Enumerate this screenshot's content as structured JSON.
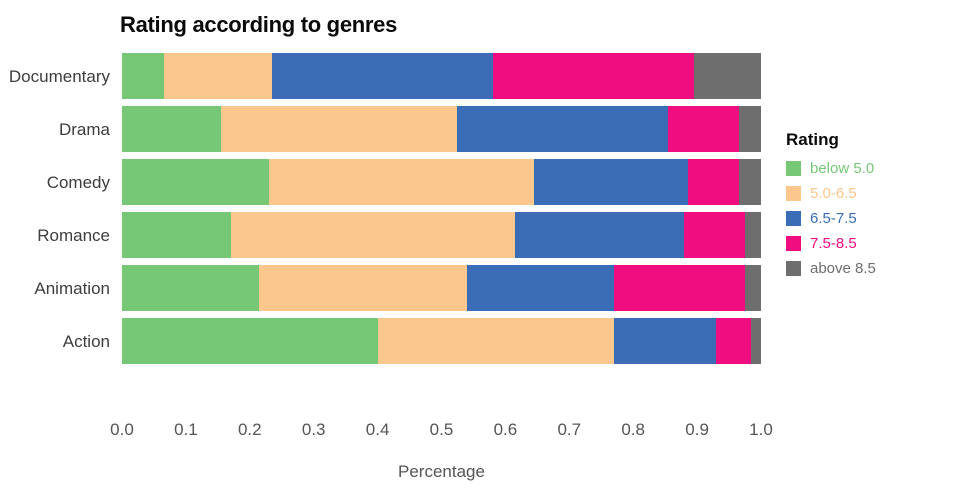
{
  "title": "Rating according to genres",
  "xlabel": "Percentage",
  "legend": {
    "title": "Rating",
    "items": [
      {
        "label": "below 5.0",
        "color": "#76C876"
      },
      {
        "label": "5.0-6.5",
        "color": "#FBC78C"
      },
      {
        "label": "6.5-7.5",
        "color": "#3A6DB5"
      },
      {
        "label": "7.5-8.5",
        "color": "#EF0D7F"
      },
      {
        "label": "above 8.5",
        "color": "#6E6E6E"
      }
    ]
  },
  "chart_data": {
    "type": "bar",
    "orientation": "horizontal",
    "stacked": true,
    "title": "Rating according to genres",
    "xlabel": "Percentage",
    "ylabel": "",
    "xlim": [
      0,
      1.0
    ],
    "x_ticks": [
      "0.0",
      "0.1",
      "0.2",
      "0.3",
      "0.4",
      "0.5",
      "0.6",
      "0.7",
      "0.8",
      "0.9",
      "1.0"
    ],
    "grid": false,
    "legend_title": "Rating",
    "legend_position": "right",
    "categories": [
      "Documentary",
      "Drama",
      "Comedy",
      "Romance",
      "Animation",
      "Action"
    ],
    "series": [
      {
        "name": "below 5.0",
        "color": "#76C876",
        "values": [
          0.065,
          0.155,
          0.23,
          0.17,
          0.215,
          0.4
        ]
      },
      {
        "name": "5.0-6.5",
        "color": "#FBC78C",
        "values": [
          0.17,
          0.37,
          0.415,
          0.445,
          0.325,
          0.37
        ]
      },
      {
        "name": "6.5-7.5",
        "color": "#3A6DB5",
        "values": [
          0.345,
          0.33,
          0.24,
          0.265,
          0.23,
          0.16
        ]
      },
      {
        "name": "7.5-8.5",
        "color": "#EF0D7F",
        "values": [
          0.315,
          0.11,
          0.08,
          0.095,
          0.205,
          0.055
        ]
      },
      {
        "name": "above 8.5",
        "color": "#6E6E6E",
        "values": [
          0.105,
          0.035,
          0.035,
          0.025,
          0.025,
          0.015
        ]
      }
    ]
  }
}
